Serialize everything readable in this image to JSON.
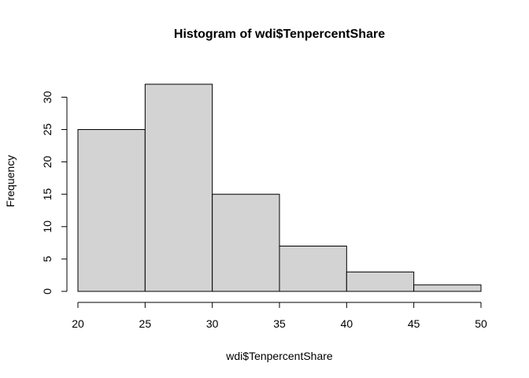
{
  "chart_data": {
    "type": "bar",
    "title": "Histogram of wdi$TenpercentShare",
    "xlabel": "wdi$TenpercentShare",
    "ylabel": "Frequency",
    "bins": [
      {
        "start": 20,
        "end": 25,
        "count": 25
      },
      {
        "start": 25,
        "end": 30,
        "count": 32
      },
      {
        "start": 30,
        "end": 35,
        "count": 15
      },
      {
        "start": 35,
        "end": 40,
        "count": 7
      },
      {
        "start": 40,
        "end": 45,
        "count": 3
      },
      {
        "start": 45,
        "end": 50,
        "count": 1
      }
    ],
    "xlim": [
      20,
      50
    ],
    "ylim": [
      0,
      32
    ],
    "xticks": [
      20,
      25,
      30,
      35,
      40,
      45,
      50
    ],
    "yticks": [
      0,
      5,
      10,
      15,
      20,
      25,
      30
    ],
    "bar_color": "#d3d3d3",
    "edge_color": "#000000",
    "grid": false
  }
}
